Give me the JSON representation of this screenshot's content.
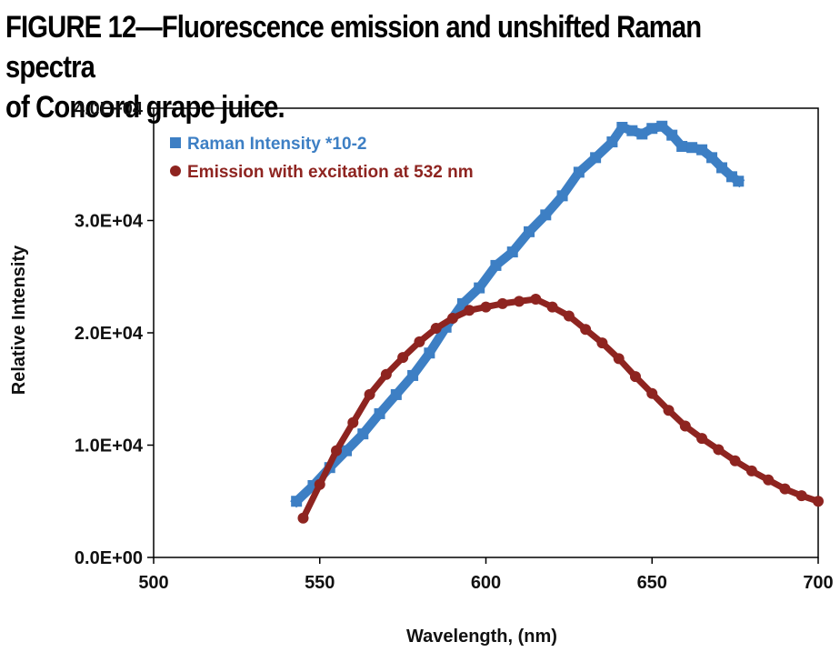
{
  "figure": {
    "title_line1": "FIGURE 12—Fluorescence emission and unshifted Raman spectra",
    "title_line2": "of Concord grape juice."
  },
  "chart_data": {
    "type": "scatter",
    "xlabel": "Wavelength, (nm)",
    "ylabel": "Relative Intensity",
    "xlim": [
      500,
      700
    ],
    "ylim": [
      0,
      40000
    ],
    "x_ticks": [
      500,
      550,
      600,
      650,
      700
    ],
    "y_ticks": [
      0,
      10000,
      20000,
      30000,
      40000
    ],
    "y_tick_labels": [
      "0.0E+00",
      "1.0E+04",
      "2.0E+04",
      "3.0E+04",
      "4.0E+04"
    ],
    "grid": false,
    "legend_position": "top-left",
    "series": [
      {
        "name": "Raman Intensity *10-2",
        "marker": "square",
        "color": "#3d7fc4",
        "x": [
          543,
          548,
          553,
          558,
          563,
          568,
          573,
          578,
          583,
          588,
          593,
          598,
          603,
          608,
          613,
          618,
          623,
          628,
          633,
          638,
          641,
          644,
          647,
          650,
          653,
          656,
          659,
          662,
          665,
          668,
          671,
          674,
          676
        ],
        "y": [
          5000,
          6400,
          8000,
          9500,
          11000,
          12800,
          14500,
          16200,
          18200,
          20500,
          22600,
          24000,
          26000,
          27200,
          29000,
          30500,
          32200,
          34300,
          35600,
          37000,
          38300,
          38000,
          37700,
          38200,
          38400,
          37600,
          36600,
          36500,
          36300,
          35600,
          34700,
          33900,
          33500
        ]
      },
      {
        "name": "Emission with excitation at 532 nm",
        "marker": "circle",
        "color": "#8e2420",
        "x": [
          545,
          550,
          555,
          560,
          565,
          570,
          575,
          580,
          585,
          590,
          595,
          600,
          605,
          610,
          615,
          620,
          625,
          630,
          635,
          640,
          645,
          650,
          655,
          660,
          665,
          670,
          675,
          680,
          685,
          690,
          695,
          700
        ],
        "y": [
          3500,
          6500,
          9500,
          12000,
          14500,
          16300,
          17800,
          19200,
          20400,
          21300,
          22000,
          22300,
          22600,
          22800,
          23000,
          22300,
          21500,
          20300,
          19100,
          17700,
          16100,
          14600,
          13100,
          11700,
          10600,
          9600,
          8600,
          7700,
          6900,
          6100,
          5500,
          5000
        ]
      }
    ]
  }
}
